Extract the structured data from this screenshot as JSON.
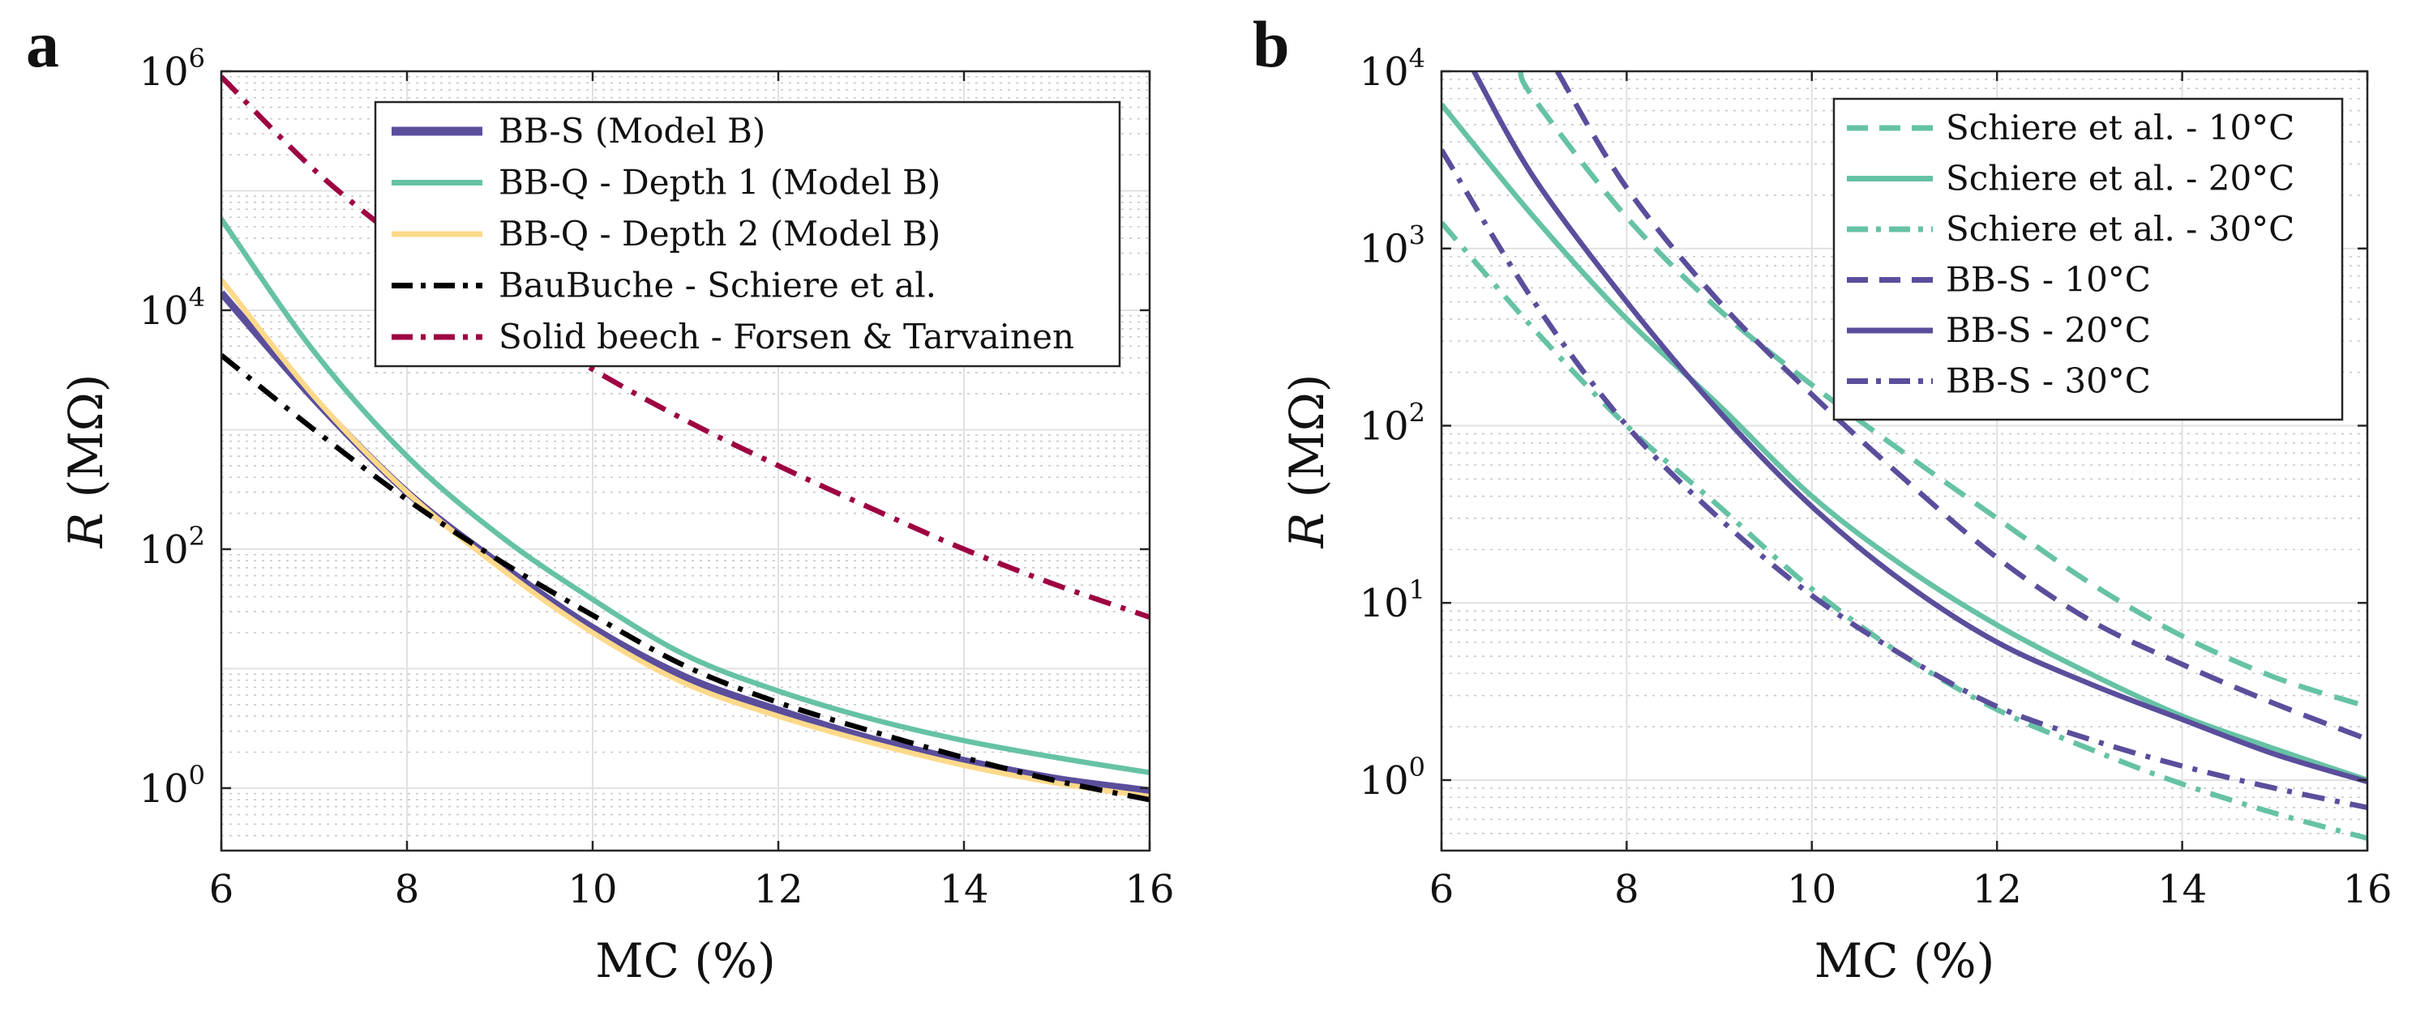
{
  "chart_data": [
    {
      "panel": "a",
      "type": "line",
      "xlabel": "MC (%)",
      "ylabel_var": "R",
      "ylabel_unit": "(MΩ)",
      "yscale": "log",
      "xlim": [
        6,
        16
      ],
      "ylim": [
        0.3,
        1000000
      ],
      "xticks": [
        6,
        8,
        10,
        12,
        14,
        16
      ],
      "yticks": [
        {
          "base": "10",
          "exp": "0",
          "value": 1
        },
        {
          "base": "10",
          "exp": "2",
          "value": 100
        },
        {
          "base": "10",
          "exp": "4",
          "value": 10000
        },
        {
          "base": "10",
          "exp": "6",
          "value": 1000000
        }
      ],
      "grid": true,
      "legend_position": "top-right",
      "series": [
        {
          "name": "BB-S (Model B)",
          "color": "#5a4e9c",
          "dash": "solid",
          "emphasis": "thick",
          "x": [
            6,
            7,
            8,
            9,
            10,
            11,
            12,
            13,
            14,
            15,
            16
          ],
          "y": [
            14000,
            1800,
            300,
            75,
            22,
            8.5,
            4.5,
            2.6,
            1.7,
            1.2,
            0.95
          ]
        },
        {
          "name": "BB-Q - Depth 1 (Model B)",
          "color": "#66c2a5",
          "dash": "solid",
          "emphasis": "normal",
          "x": [
            6,
            7,
            8,
            9,
            10,
            11,
            12,
            13,
            14,
            15,
            16
          ],
          "y": [
            58000,
            4500,
            600,
            130,
            38,
            13,
            6.5,
            3.8,
            2.5,
            1.8,
            1.35
          ]
        },
        {
          "name": "BB-Q - Depth 2 (Model B)",
          "color": "#fdd98a",
          "dash": "solid",
          "emphasis": "normal",
          "x": [
            6,
            7,
            8,
            9,
            10,
            11,
            12,
            13,
            14,
            15,
            16
          ],
          "y": [
            18000,
            1900,
            300,
            70,
            20,
            7.5,
            4,
            2.4,
            1.55,
            1.1,
            0.85
          ]
        },
        {
          "name": "BauBuche - Schiere et al.",
          "color": "#000000",
          "dash": "dashdot",
          "emphasis": "normal",
          "x": [
            6,
            7,
            8,
            9,
            10,
            11,
            12,
            13,
            14,
            15,
            16
          ],
          "y": [
            4200,
            1000,
            260,
            80,
            28,
            10.5,
            5.2,
            3,
            1.8,
            1.15,
            0.8
          ]
        },
        {
          "name": "Solid beech - Forsen & Tarvainen",
          "color": "#9e0142",
          "dash": "dashdot",
          "emphasis": "normal",
          "x": [
            6,
            7,
            8,
            9,
            10,
            11,
            12,
            13,
            14,
            15,
            16
          ],
          "y": [
            900000,
            150000,
            35000,
            10000,
            3200,
            1200,
            500,
            220,
            100,
            50,
            27
          ]
        }
      ]
    },
    {
      "panel": "b",
      "type": "line",
      "xlabel": "MC (%)",
      "ylabel_var": "R",
      "ylabel_unit": "(MΩ)",
      "yscale": "log",
      "xlim": [
        6,
        16
      ],
      "ylim": [
        0.4,
        10000
      ],
      "xticks": [
        6,
        8,
        10,
        12,
        14,
        16
      ],
      "yticks": [
        {
          "base": "10",
          "exp": "0",
          "value": 1
        },
        {
          "base": "10",
          "exp": "1",
          "value": 10
        },
        {
          "base": "10",
          "exp": "2",
          "value": 100
        },
        {
          "base": "10",
          "exp": "3",
          "value": 1000
        },
        {
          "base": "10",
          "exp": "4",
          "value": 10000
        }
      ],
      "grid": true,
      "legend_position": "top-right",
      "series": [
        {
          "name": "Schiere et al. - 10°C",
          "color": "#66c2a5",
          "dash": "dashed",
          "x": [
            6.85,
            7,
            8,
            9,
            10,
            11,
            12,
            13,
            14,
            15,
            16
          ],
          "y": [
            10000,
            7000,
            1500,
            450,
            170,
            70,
            30,
            13,
            6.5,
            3.8,
            2.6
          ]
        },
        {
          "name": "Schiere et al. - 20°C",
          "color": "#66c2a5",
          "dash": "solid",
          "x": [
            6,
            7,
            8,
            9,
            10,
            11,
            12,
            13,
            14,
            15,
            16
          ],
          "y": [
            6500,
            1500,
            400,
            130,
            40,
            16,
            7.5,
            4,
            2.3,
            1.5,
            1
          ]
        },
        {
          "name": "Schiere et al. - 30°C",
          "color": "#66c2a5",
          "dash": "dashdot",
          "x": [
            6,
            7,
            8,
            9,
            10,
            11,
            12,
            13,
            14,
            15,
            16
          ],
          "y": [
            1400,
            350,
            100,
            35,
            12,
            5,
            2.5,
            1.5,
            0.95,
            0.65,
            0.47
          ]
        },
        {
          "name": "BB-S - 10°C",
          "color": "#5a4e9c",
          "dash": "dashed",
          "x": [
            7.25,
            8,
            9,
            10,
            11,
            12,
            13,
            14,
            15,
            16
          ],
          "y": [
            10000,
            2200,
            500,
            150,
            50,
            18,
            8,
            4.5,
            2.7,
            1.7
          ]
        },
        {
          "name": "BB-S - 20°C",
          "color": "#5a4e9c",
          "dash": "solid",
          "x": [
            6.35,
            7,
            8,
            9,
            10,
            11,
            12,
            13,
            14,
            15,
            16
          ],
          "y": [
            10000,
            2500,
            500,
            120,
            35,
            13,
            6,
            3.5,
            2.2,
            1.4,
            0.98
          ]
        },
        {
          "name": "BB-S - 30°C",
          "color": "#5a4e9c",
          "dash": "dashdot",
          "x": [
            6,
            7,
            8,
            9,
            10,
            11,
            12,
            13,
            14,
            15,
            16
          ],
          "y": [
            3600,
            500,
            100,
            30,
            11,
            5,
            2.6,
            1.7,
            1.2,
            0.9,
            0.7
          ]
        }
      ]
    }
  ]
}
